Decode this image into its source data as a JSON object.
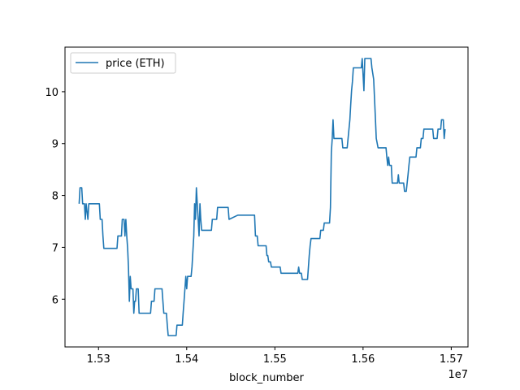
{
  "chart_data": {
    "type": "line",
    "title": "",
    "xlabel": "block_number",
    "ylabel": "",
    "x_offset_label": "1e7",
    "x_ticks": [
      1.53,
      1.54,
      1.55,
      1.56,
      1.57
    ],
    "x_tick_labels": [
      "1.53",
      "1.54",
      "1.55",
      "1.56",
      "1.57"
    ],
    "y_ticks": [
      6,
      7,
      8,
      9,
      10
    ],
    "y_tick_labels": [
      "6",
      "7",
      "8",
      "9",
      "10"
    ],
    "xlim": [
      1.5262,
      1.5719
    ],
    "ylim": [
      5.08,
      10.86
    ],
    "grid": false,
    "legend": {
      "position": "top-left",
      "entries": [
        "price (ETH)"
      ]
    },
    "series": [
      {
        "name": "price (ETH)",
        "color": "#1f77b4",
        "points": [
          [
            1.5278,
            7.84
          ],
          [
            1.5279,
            8.15
          ],
          [
            1.5281,
            8.15
          ],
          [
            1.5282,
            7.84
          ],
          [
            1.5284,
            7.84
          ],
          [
            1.5285,
            7.54
          ],
          [
            1.5286,
            7.84
          ],
          [
            1.5288,
            7.54
          ],
          [
            1.5289,
            7.84
          ],
          [
            1.5301,
            7.84
          ],
          [
            1.5302,
            7.54
          ],
          [
            1.5304,
            7.54
          ],
          [
            1.5305,
            7.22
          ],
          [
            1.5306,
            6.98
          ],
          [
            1.5321,
            6.98
          ],
          [
            1.5322,
            7.22
          ],
          [
            1.5326,
            7.22
          ],
          [
            1.5327,
            7.54
          ],
          [
            1.5329,
            7.54
          ],
          [
            1.533,
            7.22
          ],
          [
            1.5331,
            7.54
          ],
          [
            1.5332,
            7.22
          ],
          [
            1.5333,
            6.98
          ],
          [
            1.5334,
            6.62
          ],
          [
            1.5335,
            5.96
          ],
          [
            1.5336,
            6.44
          ],
          [
            1.5337,
            6.2
          ],
          [
            1.5339,
            6.2
          ],
          [
            1.534,
            5.73
          ],
          [
            1.5341,
            5.96
          ],
          [
            1.5342,
            5.96
          ],
          [
            1.5343,
            6.2
          ],
          [
            1.5345,
            6.2
          ],
          [
            1.5346,
            5.73
          ],
          [
            1.5359,
            5.73
          ],
          [
            1.536,
            5.96
          ],
          [
            1.5363,
            5.96
          ],
          [
            1.5364,
            6.2
          ],
          [
            1.5372,
            6.2
          ],
          [
            1.5373,
            5.96
          ],
          [
            1.5374,
            5.73
          ],
          [
            1.5377,
            5.73
          ],
          [
            1.5378,
            5.5
          ],
          [
            1.5379,
            5.3
          ],
          [
            1.5388,
            5.3
          ],
          [
            1.5389,
            5.5
          ],
          [
            1.5395,
            5.5
          ],
          [
            1.5396,
            5.73
          ],
          [
            1.5397,
            5.96
          ],
          [
            1.5398,
            6.2
          ],
          [
            1.5399,
            6.44
          ],
          [
            1.54,
            6.2
          ],
          [
            1.5401,
            6.44
          ],
          [
            1.5405,
            6.44
          ],
          [
            1.5406,
            6.62
          ],
          [
            1.5408,
            7.22
          ],
          [
            1.5409,
            7.84
          ],
          [
            1.541,
            7.54
          ],
          [
            1.5411,
            8.15
          ],
          [
            1.5412,
            7.84
          ],
          [
            1.5413,
            7.54
          ],
          [
            1.5414,
            7.22
          ],
          [
            1.5415,
            7.84
          ],
          [
            1.5416,
            7.54
          ],
          [
            1.5417,
            7.33
          ],
          [
            1.5428,
            7.33
          ],
          [
            1.5429,
            7.54
          ],
          [
            1.5434,
            7.54
          ],
          [
            1.5435,
            7.77
          ],
          [
            1.5447,
            7.77
          ],
          [
            1.5448,
            7.54
          ],
          [
            1.5458,
            7.62
          ],
          [
            1.5477,
            7.62
          ],
          [
            1.5478,
            7.22
          ],
          [
            1.548,
            7.22
          ],
          [
            1.5481,
            7.03
          ],
          [
            1.549,
            7.03
          ],
          [
            1.5491,
            6.84
          ],
          [
            1.5492,
            6.84
          ],
          [
            1.5493,
            6.72
          ],
          [
            1.5495,
            6.72
          ],
          [
            1.5496,
            6.62
          ],
          [
            1.5506,
            6.62
          ],
          [
            1.5507,
            6.5
          ],
          [
            1.5526,
            6.5
          ],
          [
            1.5527,
            6.62
          ],
          [
            1.5528,
            6.5
          ],
          [
            1.553,
            6.5
          ],
          [
            1.5531,
            6.38
          ],
          [
            1.5537,
            6.38
          ],
          [
            1.5538,
            6.62
          ],
          [
            1.5539,
            6.84
          ],
          [
            1.554,
            7.03
          ],
          [
            1.5541,
            7.17
          ],
          [
            1.5551,
            7.17
          ],
          [
            1.5552,
            7.33
          ],
          [
            1.5555,
            7.33
          ],
          [
            1.5556,
            7.47
          ],
          [
            1.5562,
            7.47
          ],
          [
            1.5563,
            7.77
          ],
          [
            1.5564,
            8.83
          ],
          [
            1.5565,
            9.1
          ],
          [
            1.5566,
            9.46
          ],
          [
            1.5567,
            9.1
          ],
          [
            1.5576,
            9.1
          ],
          [
            1.5577,
            8.92
          ],
          [
            1.5582,
            8.92
          ],
          [
            1.5583,
            9.1
          ],
          [
            1.5584,
            9.28
          ],
          [
            1.5585,
            9.46
          ],
          [
            1.5586,
            9.74
          ],
          [
            1.5587,
            10.02
          ],
          [
            1.5588,
            10.2
          ],
          [
            1.5589,
            10.46
          ],
          [
            1.5598,
            10.46
          ],
          [
            1.5599,
            10.64
          ],
          [
            1.5601,
            10.02
          ],
          [
            1.5602,
            10.64
          ],
          [
            1.5609,
            10.64
          ],
          [
            1.561,
            10.46
          ],
          [
            1.5612,
            10.24
          ],
          [
            1.5614,
            9.5
          ],
          [
            1.5615,
            9.1
          ],
          [
            1.5617,
            8.92
          ],
          [
            1.5626,
            8.92
          ],
          [
            1.5627,
            8.74
          ],
          [
            1.5628,
            8.58
          ],
          [
            1.5629,
            8.74
          ],
          [
            1.563,
            8.58
          ],
          [
            1.5632,
            8.58
          ],
          [
            1.5633,
            8.24
          ],
          [
            1.5639,
            8.24
          ],
          [
            1.564,
            8.4
          ],
          [
            1.5641,
            8.24
          ],
          [
            1.5646,
            8.24
          ],
          [
            1.5647,
            8.08
          ],
          [
            1.5649,
            8.08
          ],
          [
            1.565,
            8.24
          ],
          [
            1.5651,
            8.4
          ],
          [
            1.5652,
            8.58
          ],
          [
            1.5653,
            8.74
          ],
          [
            1.566,
            8.74
          ],
          [
            1.5661,
            8.92
          ],
          [
            1.5665,
            8.92
          ],
          [
            1.5666,
            9.1
          ],
          [
            1.5668,
            9.1
          ],
          [
            1.5669,
            9.28
          ],
          [
            1.5679,
            9.28
          ],
          [
            1.568,
            9.1
          ],
          [
            1.5684,
            9.1
          ],
          [
            1.5685,
            9.28
          ],
          [
            1.5688,
            9.28
          ],
          [
            1.5689,
            9.46
          ],
          [
            1.5691,
            9.46
          ],
          [
            1.5692,
            9.1
          ],
          [
            1.5693,
            9.28
          ]
        ]
      }
    ]
  }
}
